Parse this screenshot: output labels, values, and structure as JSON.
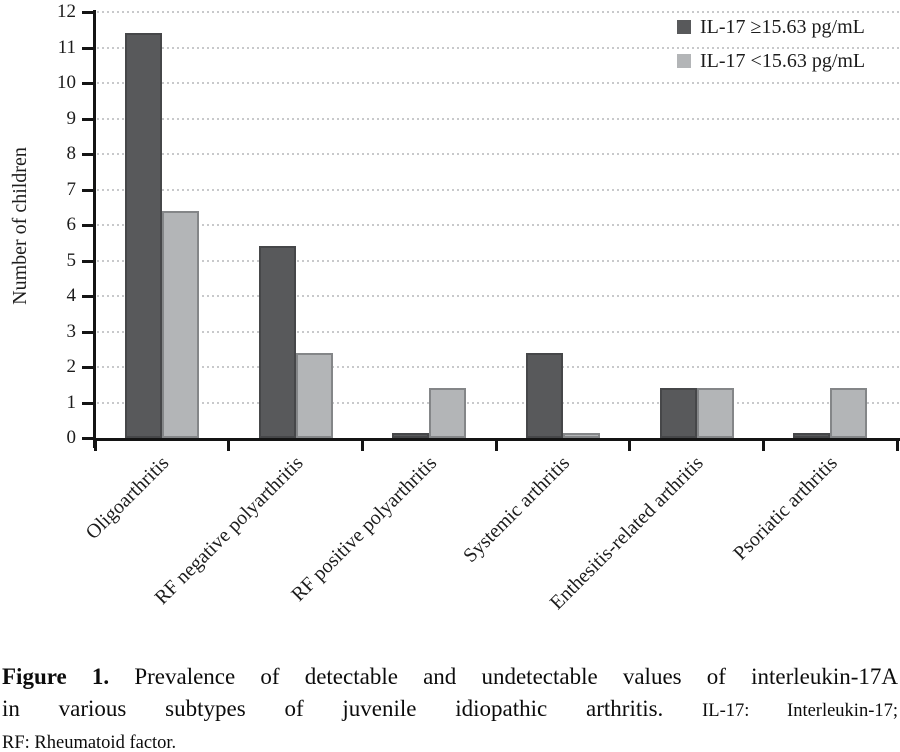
{
  "figure": {
    "caption": {
      "label": "Figure 1.",
      "line1_rest": "Prevalence of detectable and undetectable values of interleukin-17A",
      "line2_main": "in various subtypes of juvenile idiopathic arthritis.",
      "line2_abbrev": "IL-17: Interleukin-17;",
      "line3_abbrev": "RF: Rheumatoid factor."
    }
  },
  "chart_data": {
    "type": "bar",
    "title": "",
    "xlabel": "",
    "ylabel": "Number of children",
    "ylim": [
      0,
      12
    ],
    "ytick_step": 1,
    "yticks": [
      0,
      1,
      2,
      3,
      4,
      5,
      6,
      7,
      8,
      9,
      10,
      11,
      12
    ],
    "grid": "horizontal dotted",
    "legend_position": "top-right inside plot",
    "categories": [
      "Oligoarthritis",
      "RF negative polyarthritis",
      "RF positive polyarthritis",
      "Systemic arthritis",
      "Enthesitis-related arthritis",
      "Psoriatic arthritis"
    ],
    "series": [
      {
        "name": "IL-17 ≥15.63 pg/mL",
        "color": "#58595b",
        "border_color": "#464749",
        "values": [
          11.4,
          5.4,
          0.15,
          2.4,
          1.4,
          0.15
        ]
      },
      {
        "name": "IL-17 <15.63 pg/mL",
        "color": "#b3b5b7",
        "border_color": "#848688",
        "values": [
          6.4,
          2.4,
          1.4,
          0.15,
          1.4,
          1.4
        ]
      }
    ],
    "colors": {
      "axis": "#141414",
      "grid": "#c8c9cb",
      "text": "#1c1c1c"
    }
  }
}
